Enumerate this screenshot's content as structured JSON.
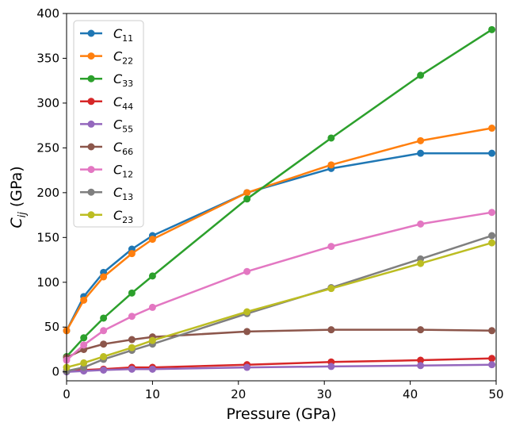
{
  "chart_data": {
    "type": "line",
    "xlabel": "Pressure (GPa)",
    "ylabel_main": "C",
    "ylabel_sub": "ij",
    "ylabel_unit": " (GPa)",
    "xlim": [
      0,
      50
    ],
    "ylim": [
      -10,
      400
    ],
    "xticks": [
      0,
      10,
      20,
      30,
      40,
      50
    ],
    "yticks": [
      0,
      50,
      100,
      150,
      200,
      250,
      300,
      350,
      400
    ],
    "grid": false,
    "legend_position": "top-left",
    "x": [
      0,
      2,
      4.3,
      7.6,
      10,
      21,
      30.8,
      41.2,
      49.5
    ],
    "series": [
      {
        "name": "C",
        "sub": "11",
        "color": "#1f77b4",
        "values": [
          46,
          84,
          111,
          137,
          152,
          200,
          227,
          244,
          244
        ]
      },
      {
        "name": "C",
        "sub": "22",
        "color": "#ff7f0e",
        "values": [
          46,
          80,
          106,
          132,
          148,
          200,
          231,
          258,
          272
        ]
      },
      {
        "name": "C",
        "sub": "33",
        "color": "#2ca02c",
        "values": [
          17,
          38,
          60,
          88,
          107,
          193,
          261,
          331,
          382
        ]
      },
      {
        "name": "C",
        "sub": "44",
        "color": "#d62728",
        "values": [
          1,
          2,
          3,
          5,
          5,
          8,
          11,
          13,
          15
        ]
      },
      {
        "name": "C",
        "sub": "55",
        "color": "#9467bd",
        "values": [
          0,
          1,
          2,
          3,
          3,
          5,
          6,
          7,
          8
        ]
      },
      {
        "name": "C",
        "sub": "66",
        "color": "#8c564b",
        "values": [
          16,
          25,
          31,
          36,
          39,
          45,
          47,
          47,
          46
        ]
      },
      {
        "name": "C",
        "sub": "12",
        "color": "#e377c2",
        "values": [
          13,
          30,
          46,
          62,
          72,
          112,
          140,
          165,
          178
        ]
      },
      {
        "name": "C",
        "sub": "13",
        "color": "#7f7f7f",
        "values": [
          1,
          5,
          14,
          24,
          31,
          65,
          94,
          126,
          152
        ]
      },
      {
        "name": "C",
        "sub": "23",
        "color": "#bcbd22",
        "values": [
          5,
          10,
          17,
          27,
          35,
          67,
          93,
          121,
          144
        ]
      }
    ]
  }
}
